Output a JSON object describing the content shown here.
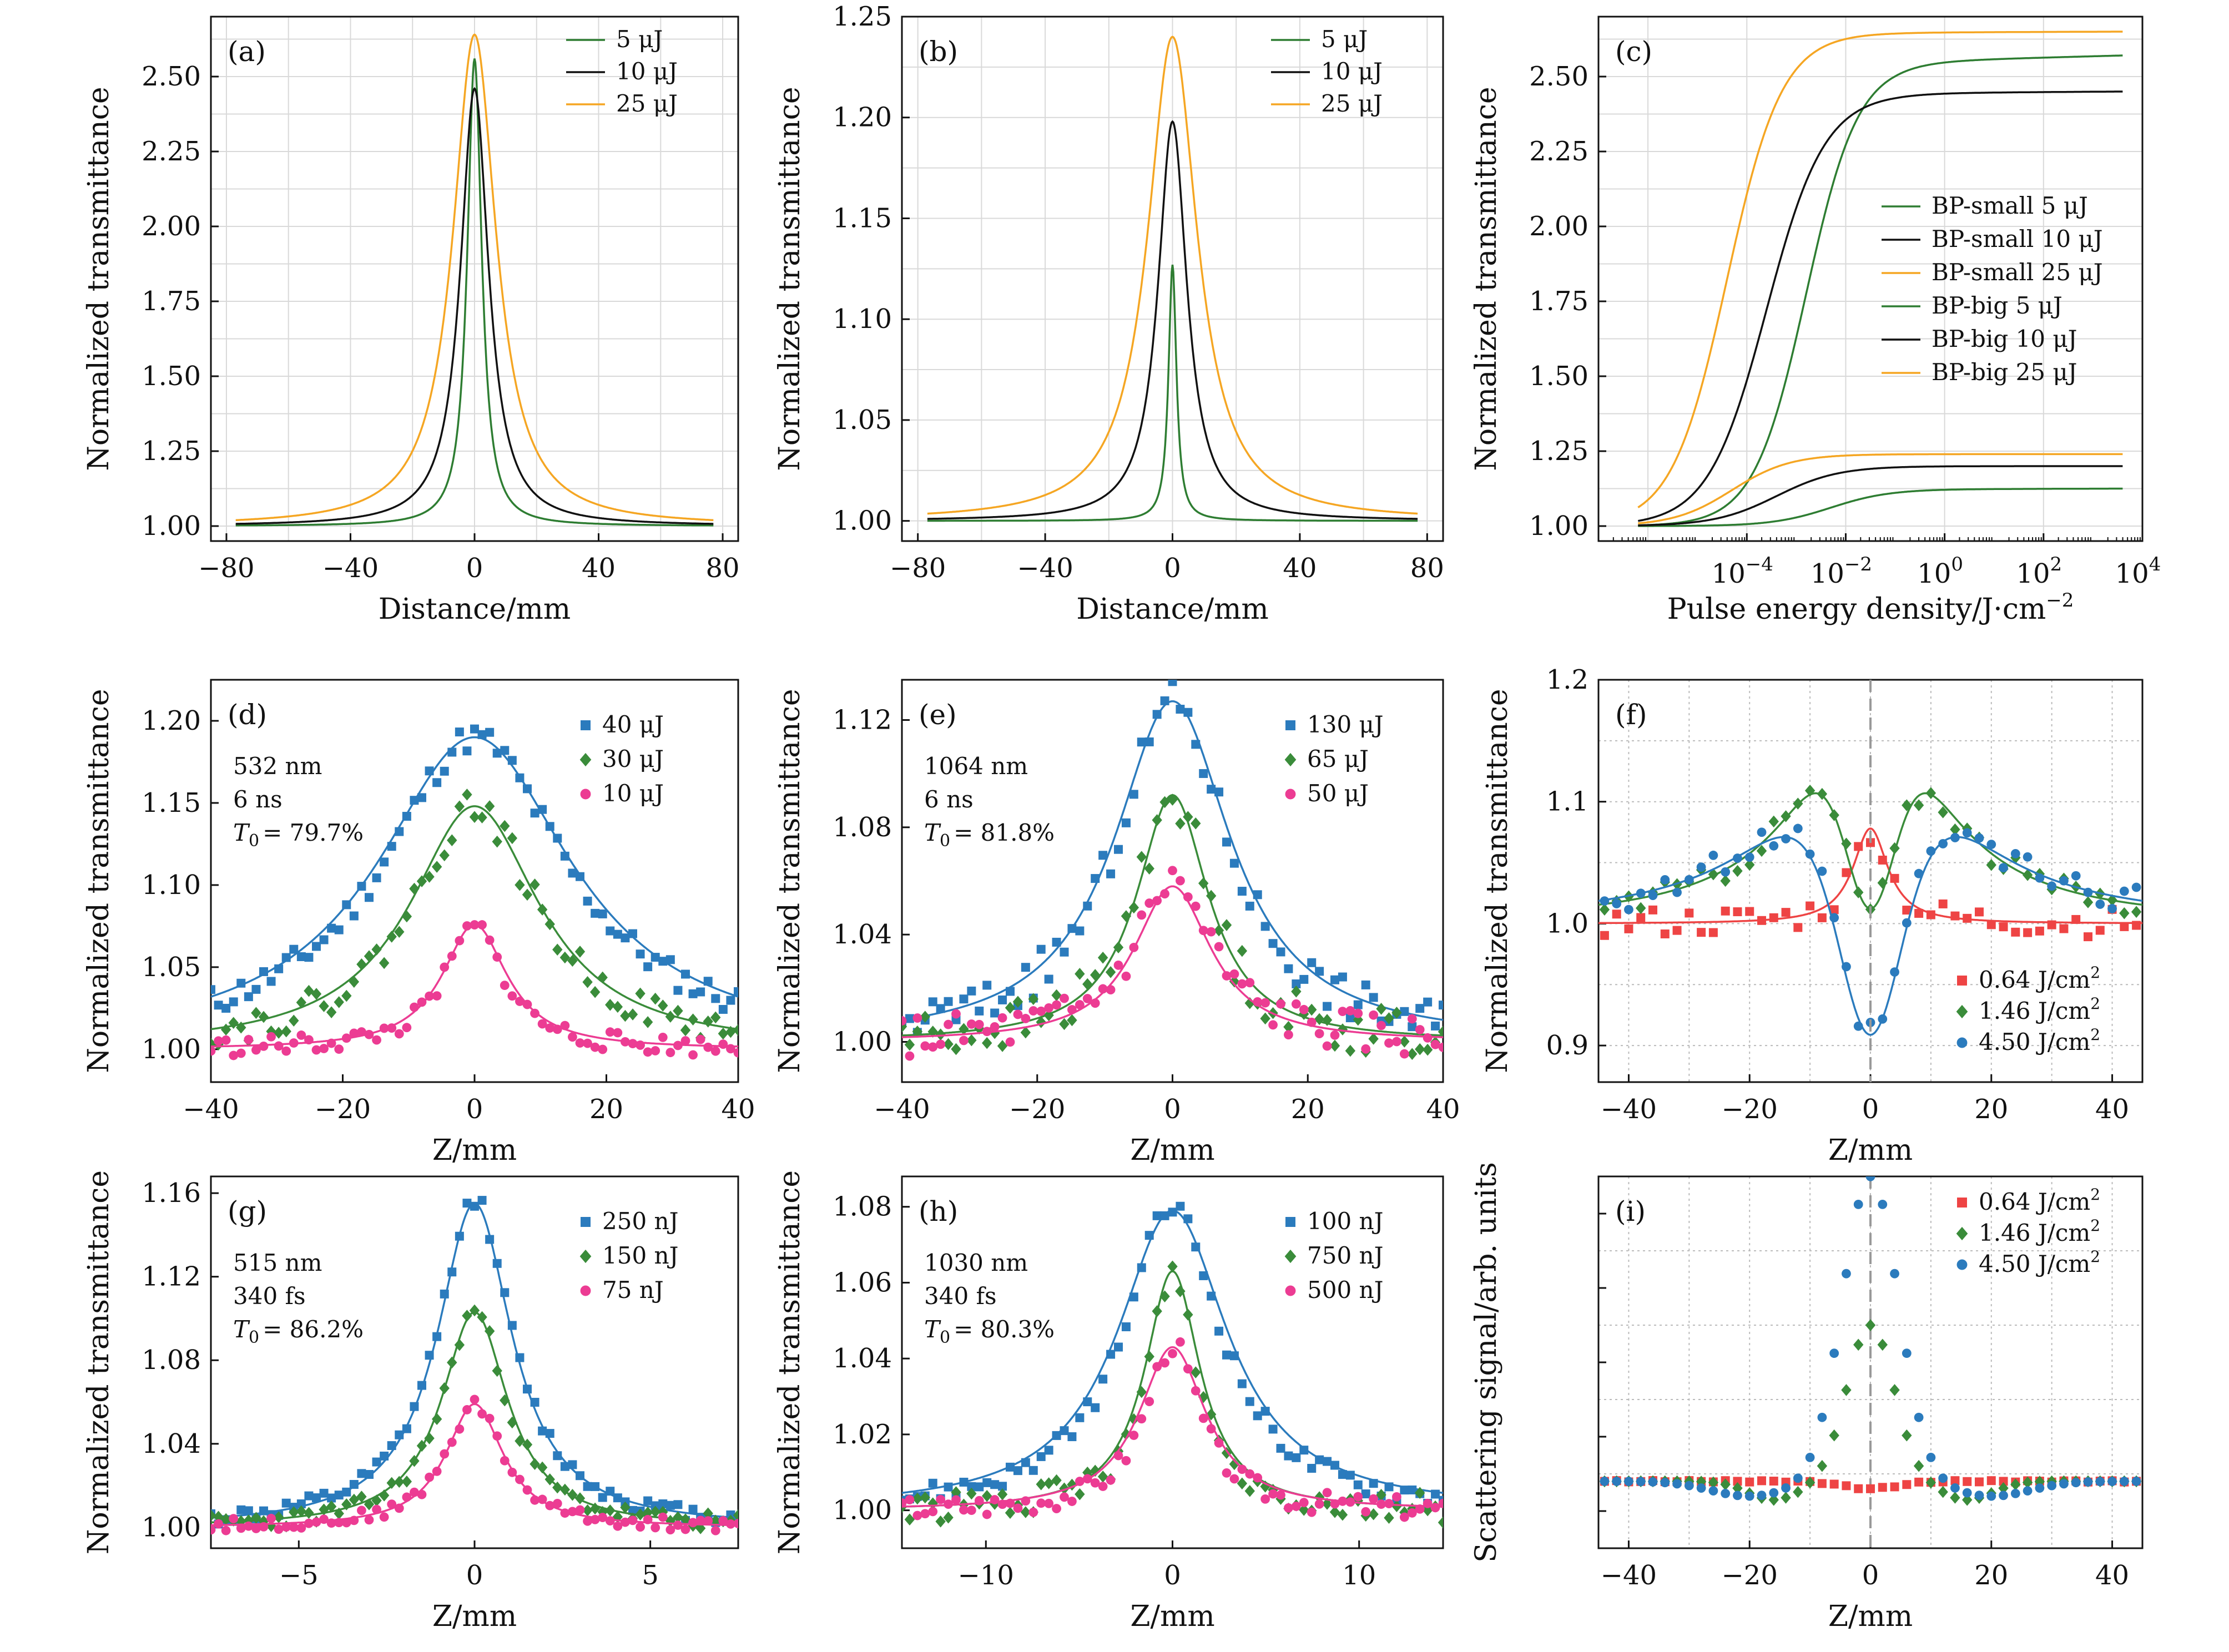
{
  "colors": {
    "green": "#2e7d32",
    "black": "#111111",
    "orange": "#f5a623",
    "blue": "#2b7bbd",
    "greenMarker": "#3a8c3a",
    "pink": "#ec3c93",
    "red": "#ee4444"
  },
  "chart_data": [
    {
      "panel": "(a)",
      "type": "line",
      "xlabel": "Distance/mm",
      "ylabel": "Normalized transmittance",
      "xlim": [
        -85,
        85
      ],
      "ylim": [
        0.95,
        2.7
      ],
      "xticks": [
        -80,
        -40,
        0,
        40,
        80
      ],
      "xtick_labels": [
        "−80",
        "−40",
        "0",
        "40",
        "80"
      ],
      "yticks": [
        1.0,
        1.25,
        1.5,
        1.75,
        2.0,
        2.25,
        2.5
      ],
      "ytick_labels": [
        "1.00",
        "1.25",
        "1.50",
        "1.75",
        "2.00",
        "2.25",
        "2.50"
      ],
      "grid": true,
      "legend": "top-right",
      "series": [
        {
          "name": "5 μJ",
          "color": "green",
          "amp": 1.56,
          "w": 2.8,
          "xrange": [
            -77,
            77
          ]
        },
        {
          "name": "10 μJ",
          "color": "black",
          "amp": 1.46,
          "w": 5.5,
          "xrange": [
            -77,
            77
          ]
        },
        {
          "name": "25 μJ",
          "color": "orange",
          "amp": 1.64,
          "w": 8.5,
          "xrange": [
            -77,
            77
          ]
        }
      ]
    },
    {
      "panel": "(b)",
      "type": "line",
      "xlabel": "Distance/mm",
      "ylabel": "Normalized transmittance",
      "xlim": [
        -85,
        85
      ],
      "ylim": [
        0.99,
        1.25
      ],
      "xticks": [
        -80,
        -40,
        0,
        40,
        80
      ],
      "xtick_labels": [
        "−80",
        "−40",
        "0",
        "40",
        "80"
      ],
      "yticks": [
        1.0,
        1.05,
        1.1,
        1.15,
        1.2,
        1.25
      ],
      "ytick_labels": [
        "1.00",
        "1.05",
        "1.10",
        "1.15",
        "1.20",
        "1.25"
      ],
      "grid": true,
      "legend": "top-right",
      "series": [
        {
          "name": "5 μJ",
          "color": "green",
          "amp": 0.127,
          "w": 1.5,
          "xrange": [
            -77,
            77
          ]
        },
        {
          "name": "10 μJ",
          "color": "black",
          "amp": 0.198,
          "w": 5.5,
          "xrange": [
            -77,
            77
          ]
        },
        {
          "name": "25 μJ",
          "color": "orange",
          "amp": 0.24,
          "w": 9.5,
          "xrange": [
            -77,
            77
          ]
        }
      ]
    },
    {
      "panel": "(c)",
      "type": "line",
      "xscale": "log",
      "xlabel": "Pulse energy density/J·cm",
      "xlabel_sup": "−2",
      "ylabel": "Normalized transmittance",
      "xlim_log10": [
        -7,
        4
      ],
      "ylim": [
        0.95,
        2.7
      ],
      "xticks_log10": [
        -4,
        -2,
        0,
        2,
        4
      ],
      "yticks": [
        1.0,
        1.25,
        1.5,
        1.75,
        2.0,
        2.25,
        2.5
      ],
      "ytick_labels": [
        "1.00",
        "1.25",
        "1.50",
        "1.75",
        "2.00",
        "2.25",
        "2.50"
      ],
      "grid": true,
      "legend": "right",
      "series": [
        {
          "name": "BP-small 5 μJ",
          "color": "green",
          "max": 2.57,
          "center_log10": -2.8,
          "slope": 1.9,
          "drift": 0.02
        },
        {
          "name": "BP-small 10 μJ",
          "color": "black",
          "max": 2.45,
          "center_log10": -3.6,
          "slope": 1.7,
          "drift": 0.005
        },
        {
          "name": "BP-small 25 μJ",
          "color": "orange",
          "max": 2.65,
          "center_log10": -4.4,
          "slope": 1.8,
          "drift": 0.003
        },
        {
          "name": "BP-big 5 μJ",
          "color": "green",
          "max": 1.125,
          "center_log10": -2.3,
          "slope": 1.7,
          "drift": 0.002
        },
        {
          "name": "BP-big 10 μJ",
          "color": "black",
          "max": 1.2,
          "center_log10": -3.4,
          "slope": 1.6,
          "drift": 0.0
        },
        {
          "name": "BP-big 25 μJ",
          "color": "orange",
          "max": 1.24,
          "center_log10": -4.3,
          "slope": 1.7,
          "drift": 0.0
        }
      ]
    },
    {
      "panel": "(d)",
      "type": "scatter",
      "xlabel": "Z/mm",
      "ylabel": "Normalized transmittance",
      "xlim": [
        -40,
        40
      ],
      "ylim": [
        0.98,
        1.225
      ],
      "xticks": [
        -40,
        -20,
        0,
        20,
        40
      ],
      "xtick_labels": [
        "−40",
        "−20",
        "0",
        "20",
        "40"
      ],
      "yticks": [
        1.0,
        1.05,
        1.1,
        1.15,
        1.2
      ],
      "ytick_labels": [
        "1.00",
        "1.05",
        "1.10",
        "1.15",
        "1.20"
      ],
      "grid": false,
      "legend": "top-right",
      "annotations": [
        "532 nm",
        "6 ns",
        "= 79.7%"
      ],
      "series": [
        {
          "name": "40 μJ",
          "color": "blue",
          "marker": "square",
          "amp": 0.19,
          "w": 17,
          "fitamp": 0.19,
          "fitw": 18,
          "noise": 0.009,
          "seed": 11
        },
        {
          "name": "30 μJ",
          "color": "greenMarker",
          "marker": "diamond",
          "amp": 0.148,
          "w": 11.5,
          "fitamp": 0.148,
          "fitw": 12,
          "noise": 0.01,
          "seed": 22
        },
        {
          "name": "10 μJ",
          "color": "pink",
          "marker": "circle",
          "amp": 0.075,
          "w": 5.5,
          "fitamp": 0.076,
          "fitw": 6,
          "noise": 0.006,
          "seed": 33
        }
      ]
    },
    {
      "panel": "(e)",
      "type": "scatter",
      "xlabel": "Z/mm",
      "ylabel": "Normalized transmittance",
      "xlim": [
        -40,
        40
      ],
      "ylim": [
        0.985,
        1.135
      ],
      "xticks": [
        -40,
        -20,
        0,
        20,
        40
      ],
      "xtick_labels": [
        "−40",
        "−20",
        "0",
        "20",
        "40"
      ],
      "yticks": [
        1.0,
        1.04,
        1.08,
        1.12
      ],
      "ytick_labels": [
        "1.00",
        "1.04",
        "1.08",
        "1.12"
      ],
      "grid": false,
      "legend": "top-right",
      "annotations": [
        "1064 nm",
        "6 ns",
        "= 81.8%"
      ],
      "series": [
        {
          "name": "130 μJ",
          "color": "blue",
          "marker": "square",
          "amp": 0.127,
          "w": 10,
          "fitamp": 0.127,
          "fitw": 10.5,
          "noise": 0.008,
          "seed": 44
        },
        {
          "name": "65 μJ",
          "color": "greenMarker",
          "marker": "diamond",
          "amp": 0.093,
          "w": 6.5,
          "fitamp": 0.092,
          "fitw": 6.5,
          "noise": 0.009,
          "seed": 55
        },
        {
          "name": "50 μJ",
          "color": "pink",
          "marker": "circle",
          "amp": 0.06,
          "w": 7,
          "fitamp": 0.058,
          "fitw": 7,
          "noise": 0.008,
          "seed": 66
        }
      ]
    },
    {
      "panel": "(f)",
      "type": "scatter",
      "xlabel": "Z/mm",
      "ylabel": "Normalized transmittance",
      "xlim": [
        -45,
        45
      ],
      "ylim": [
        0.87,
        1.2
      ],
      "xticks": [
        -40,
        -20,
        0,
        20,
        40
      ],
      "xtick_labels": [
        "−40",
        "−20",
        "0",
        "20",
        "40"
      ],
      "yticks": [
        0.9,
        1.0,
        1.1,
        1.2
      ],
      "ytick_labels": [
        "0.9",
        "1.0",
        "1.1",
        "1.2"
      ],
      "grid": true,
      "legend": "bottom-right",
      "series": [
        {
          "name": "0.64 J/cm",
          "sup": "2",
          "color": "red",
          "marker": "square",
          "kind": "peak",
          "amp": 0.078,
          "w": 3.5,
          "noise": 0.012,
          "seed": 77
        },
        {
          "name": "1.46 J/cm",
          "sup": "2",
          "color": "greenMarker",
          "marker": "diamond",
          "kind": "double",
          "amp": 0.175,
          "w": 14,
          "dipamp": 0.07,
          "dipw": 2.5,
          "noise": 0.01,
          "seed": 88
        },
        {
          "name": "4.50 J/cm",
          "sup": "2",
          "color": "blue",
          "marker": "circle",
          "kind": "dip",
          "amp": 0.13,
          "w": 17,
          "dipamp": 0.24,
          "dipw": 4.5,
          "noise": 0.012,
          "seed": 99
        }
      ]
    },
    {
      "panel": "(g)",
      "type": "scatter",
      "xlabel": "Z/mm",
      "ylabel": "Normalized transmittance",
      "xlim": [
        -7.5,
        7.5
      ],
      "ylim": [
        0.99,
        1.168
      ],
      "xticks": [
        -5,
        0,
        5
      ],
      "xtick_labels": [
        "−5",
        "0",
        "5"
      ],
      "yticks": [
        1.0,
        1.04,
        1.08,
        1.12,
        1.16
      ],
      "ytick_labels": [
        "1.00",
        "1.04",
        "1.08",
        "1.12",
        "1.16"
      ],
      "grid": false,
      "legend": "top-right",
      "annotations": [
        "515 nm",
        "340 fs",
        "= 86.2%"
      ],
      "series": [
        {
          "name": "250 nJ",
          "color": "blue",
          "marker": "square",
          "amp": 0.157,
          "w": 1.3,
          "fitamp": 0.155,
          "fitw": 1.3,
          "noise": 0.004,
          "seed": 12
        },
        {
          "name": "150 nJ",
          "color": "greenMarker",
          "marker": "diamond",
          "amp": 0.104,
          "w": 1.1,
          "fitamp": 0.103,
          "fitw": 1.15,
          "noise": 0.004,
          "seed": 23
        },
        {
          "name": "75 nJ",
          "color": "pink",
          "marker": "circle",
          "amp": 0.059,
          "w": 1.0,
          "fitamp": 0.059,
          "fitw": 1.0,
          "noise": 0.003,
          "seed": 34
        }
      ]
    },
    {
      "panel": "(h)",
      "type": "scatter",
      "xlabel": "Z/mm",
      "ylabel": "Normalized transmittance",
      "xlim": [
        -14.5,
        14.5
      ],
      "ylim": [
        0.99,
        1.088
      ],
      "xticks": [
        -10,
        0,
        10
      ],
      "xtick_labels": [
        "−10",
        "0",
        "10"
      ],
      "yticks": [
        1.0,
        1.02,
        1.04,
        1.06,
        1.08
      ],
      "ytick_labels": [
        "1.00",
        "1.02",
        "1.04",
        "1.06",
        "1.08"
      ],
      "grid": false,
      "legend": "top-right",
      "annotations": [
        "1030 nm",
        "340 fs",
        "= 80.3%"
      ],
      "series": [
        {
          "name": "100 nJ",
          "color": "blue",
          "marker": "square",
          "amp": 0.08,
          "w": 3.2,
          "fitamp": 0.079,
          "fitw": 3.6,
          "noise": 0.003,
          "seed": 45
        },
        {
          "name": "750 nJ",
          "color": "greenMarker",
          "marker": "diamond",
          "amp": 0.063,
          "w": 1.6,
          "fitamp": 0.063,
          "fitw": 1.8,
          "noise": 0.004,
          "seed": 56
        },
        {
          "name": "500 nJ",
          "color": "pink",
          "marker": "circle",
          "amp": 0.044,
          "w": 1.8,
          "fitamp": 0.043,
          "fitw": 2.2,
          "noise": 0.003,
          "seed": 67
        }
      ]
    },
    {
      "panel": "(i)",
      "type": "scatter",
      "xlabel": "Z/mm",
      "ylabel": "Scattering signal/arb. units",
      "xlim": [
        -45,
        45
      ],
      "ylim": [
        0,
        1
      ],
      "xticks": [
        -40,
        -20,
        0,
        20,
        40
      ],
      "xtick_labels": [
        "−40",
        "−20",
        "0",
        "20",
        "40"
      ],
      "yticks": [],
      "ytick_labels": [],
      "grid": true,
      "legend": "top-right",
      "series": [
        {
          "name": "0.64 J/cm",
          "sup": "2",
          "color": "red",
          "marker": "square",
          "kind": "flatdip"
        },
        {
          "name": "1.46 J/cm",
          "sup": "2",
          "color": "greenMarker",
          "marker": "diamond",
          "kind": "midpeak"
        },
        {
          "name": "4.50 J/cm",
          "sup": "2",
          "color": "blue",
          "marker": "circle",
          "kind": "bigpeak"
        }
      ]
    }
  ]
}
